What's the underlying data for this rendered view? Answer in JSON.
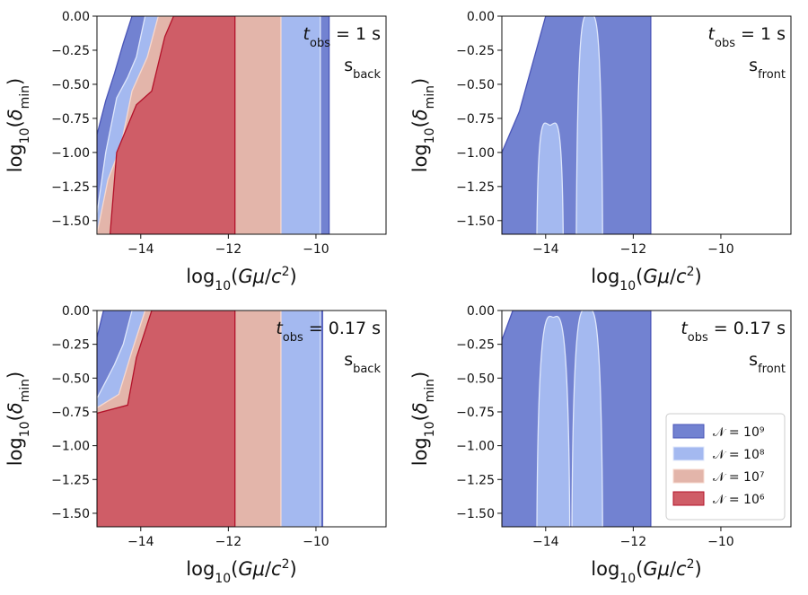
{
  "colors": {
    "n9": "#7282d1",
    "n9_edge": "#4a55b8",
    "n8": "#a4b9f0",
    "n8_edge": "#dfe7fb",
    "n7": "#e3b5aa",
    "n7_edge": "#f7d9cf",
    "n6": "#cf5d67",
    "n6_edge": "#b3122a"
  },
  "chart_data": [
    {
      "type": "area",
      "id": "top-left",
      "xlabel": "log10(Gμ/c²)",
      "ylabel": "log10(δmin)",
      "xlim": [
        -15,
        -8.4
      ],
      "ylim": [
        -1.6,
        0
      ],
      "xticks": [
        "−14",
        "−12",
        "−10"
      ],
      "yticks": [
        "0.00",
        "−0.25",
        "−0.50",
        "−0.75",
        "−1.00",
        "−1.25",
        "−1.50"
      ],
      "annotation_t": "t_obs = 1 s",
      "annotation_s": "s_back",
      "regions": [
        {
          "level": "N=10^9",
          "left_boundary": [
            [
              -15,
              -0.87
            ],
            [
              -14.8,
              -0.62
            ],
            [
              -14.6,
              -0.42
            ],
            [
              -14.4,
              -0.2
            ],
            [
              -14.2,
              0
            ]
          ],
          "right_edge": -9.7
        },
        {
          "level": "N=10^8",
          "left_boundary": [
            [
              -15,
              -1.45
            ],
            [
              -14.8,
              -1.0
            ],
            [
              -14.55,
              -0.6
            ],
            [
              -14.3,
              -0.45
            ],
            [
              -14.1,
              -0.3
            ],
            [
              -13.9,
              0
            ]
          ],
          "right_edge": -9.9
        },
        {
          "level": "N=10^7",
          "left_boundary": [
            [
              -15,
              -1.6
            ],
            [
              -14.75,
              -1.2
            ],
            [
              -14.45,
              -0.95
            ],
            [
              -14.2,
              -0.55
            ],
            [
              -13.85,
              -0.3
            ],
            [
              -13.6,
              0
            ]
          ],
          "right_edge": -10.8
        },
        {
          "level": "N=10^6",
          "left_boundary": [
            [
              -14.7,
              -1.6
            ],
            [
              -14.55,
              -1.0
            ],
            [
              -14.1,
              -0.65
            ],
            [
              -13.75,
              -0.55
            ],
            [
              -13.45,
              -0.15
            ],
            [
              -13.25,
              0
            ]
          ],
          "right_edge": -11.85
        }
      ]
    },
    {
      "type": "area",
      "id": "top-right",
      "xlabel": "log10(Gμ/c²)",
      "ylabel": "log10(δmin)",
      "xlim": [
        -15,
        -8.4
      ],
      "ylim": [
        -1.6,
        0
      ],
      "xticks": [
        "−14",
        "−12",
        "−10"
      ],
      "yticks": [
        "0.00",
        "−0.25",
        "−0.50",
        "−0.75",
        "−1.00",
        "−1.25",
        "−1.50"
      ],
      "annotation_t": "t_obs = 1 s",
      "annotation_s": "s_front",
      "regions": [
        {
          "level": "N=10^9",
          "left_boundary": [
            [
              -15,
              -1.0
            ],
            [
              -14.6,
              -0.7
            ],
            [
              -14.0,
              0
            ]
          ],
          "right_edge": -11.6
        },
        {
          "level": "N=10^8",
          "lobes": [
            [
              -14.2,
              -0.8,
              -13.6
            ],
            [
              -13.3,
              0,
              -12.7
            ]
          ]
        }
      ]
    },
    {
      "type": "area",
      "id": "bottom-left",
      "xlabel": "log10(Gμ/c²)",
      "ylabel": "log10(δmin)",
      "xlim": [
        -15,
        -8.4
      ],
      "ylim": [
        -1.6,
        0
      ],
      "xticks": [
        "−14",
        "−12",
        "−10"
      ],
      "yticks": [
        "0.00",
        "−0.25",
        "−0.50",
        "−0.75",
        "−1.00",
        "−1.25",
        "−1.50"
      ],
      "annotation_t": "t_obs = 0.17 s",
      "annotation_s": "s_back",
      "regions": [
        {
          "level": "N=10^9",
          "left_boundary": [
            [
              -15,
              -0.2
            ],
            [
              -14.85,
              0
            ]
          ],
          "right_edge": -9.85
        },
        {
          "level": "N=10^8",
          "left_boundary": [
            [
              -15,
              -0.65
            ],
            [
              -14.6,
              -0.4
            ],
            [
              -14.4,
              -0.25
            ],
            [
              -14.2,
              0
            ]
          ],
          "right_edge": -9.9
        },
        {
          "level": "N=10^7",
          "left_boundary": [
            [
              -15,
              -0.72
            ],
            [
              -14.5,
              -0.62
            ],
            [
              -14.2,
              -0.3
            ],
            [
              -13.9,
              0
            ]
          ],
          "right_edge": -10.8
        },
        {
          "level": "N=10^6",
          "left_boundary": [
            [
              -15,
              -0.76
            ],
            [
              -14.3,
              -0.7
            ],
            [
              -14.1,
              -0.35
            ],
            [
              -13.75,
              0
            ]
          ],
          "right_edge": -11.85
        }
      ]
    },
    {
      "type": "area",
      "id": "bottom-right",
      "xlabel": "log10(Gμ/c²)",
      "ylabel": "log10(δmin)",
      "xlim": [
        -15,
        -8.4
      ],
      "ylim": [
        -1.6,
        0
      ],
      "xticks": [
        "−14",
        "−12",
        "−10"
      ],
      "yticks": [
        "0.00",
        "−0.25",
        "−0.50",
        "−0.75",
        "−1.00",
        "−1.25",
        "−1.50"
      ],
      "annotation_t": "t_obs = 0.17 s",
      "annotation_s": "s_front",
      "regions": [
        {
          "level": "N=10^9",
          "left_boundary": [
            [
              -15,
              -0.22
            ],
            [
              -14.75,
              0
            ]
          ],
          "right_edge": -11.6
        },
        {
          "level": "N=10^8",
          "lobes": [
            [
              -14.2,
              -0.05,
              -13.45
            ],
            [
              -13.4,
              0,
              -12.7
            ]
          ]
        }
      ],
      "legend": {
        "position": "lower-right",
        "entries": [
          {
            "label": "𝒩 = 10⁹",
            "color_key": "n9"
          },
          {
            "label": "𝒩 = 10⁸",
            "color_key": "n8"
          },
          {
            "label": "𝒩 = 10⁷",
            "color_key": "n7"
          },
          {
            "label": "𝒩 = 10⁶",
            "color_key": "n6"
          }
        ]
      }
    }
  ]
}
